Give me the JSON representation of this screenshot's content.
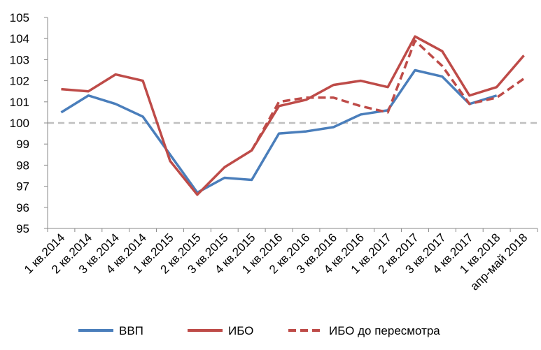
{
  "chart_data": {
    "type": "line",
    "categories": [
      "1 кв.2014",
      "2 кв.2014",
      "3 кв.2014",
      "4 кв.2014",
      "1 кв.2015",
      "2 кв.2015",
      "3 кв.2015",
      "4 кв.2015",
      "1 кв.2016",
      "2 кв.2016",
      "3 кв.2016",
      "4 кв.2016",
      "1 кв.2017",
      "2 кв.2017",
      "3 кв.2017",
      "4 кв.2017",
      "1 кв.2018",
      "апр-май 2018"
    ],
    "series": [
      {
        "name": "ВВП",
        "color": "#4a7ebb",
        "dash": false,
        "values": [
          100.5,
          101.3,
          100.9,
          100.3,
          98.5,
          96.7,
          97.4,
          97.3,
          99.5,
          99.6,
          99.8,
          100.4,
          100.6,
          102.5,
          102.2,
          100.9,
          101.3,
          null
        ]
      },
      {
        "name": "ИБО",
        "color": "#be4b48",
        "dash": false,
        "values": [
          101.6,
          101.5,
          102.3,
          102.0,
          98.2,
          96.6,
          97.9,
          98.7,
          100.8,
          101.1,
          101.8,
          102.0,
          101.7,
          104.1,
          103.4,
          101.3,
          101.7,
          103.2
        ]
      },
      {
        "name": "ИБО до пересмотра",
        "color": "#be4b48",
        "dash": true,
        "values": [
          null,
          null,
          null,
          null,
          null,
          null,
          null,
          98.7,
          101.0,
          101.2,
          101.2,
          100.8,
          100.5,
          103.9,
          102.7,
          100.9,
          101.2,
          102.1
        ]
      }
    ],
    "reference_line": 100,
    "ylim": [
      95,
      105
    ],
    "yticks": [
      95,
      96,
      97,
      98,
      99,
      100,
      101,
      102,
      103,
      104,
      105
    ]
  }
}
